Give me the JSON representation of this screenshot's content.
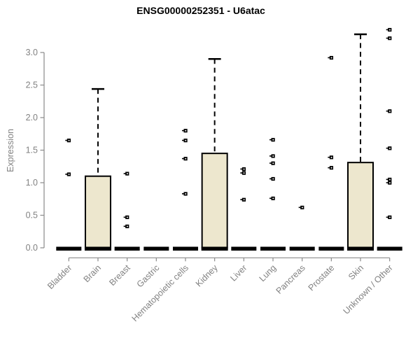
{
  "chart_data": {
    "type": "boxplot",
    "title": "ENSG00000252351 - U6atac",
    "ylabel": "Expression",
    "xlabel": "",
    "ylim": [
      0,
      3.45
    ],
    "ytick_labels": [
      "0.0",
      "0.5",
      "1.0",
      "1.5",
      "2.0",
      "2.5",
      "3.0"
    ],
    "categories": [
      "Bladder",
      "Brain",
      "Breast",
      "Gastric",
      "Hematopoietic cells",
      "Kidney",
      "Liver",
      "Lung",
      "Pancreas",
      "Prostate",
      "Skin",
      "Unknown / Other"
    ],
    "boxes": [
      {
        "category": "Bladder",
        "median": 0,
        "q1": 0,
        "q3": 0,
        "whisker_low": 0,
        "whisker_high": 0,
        "outliers": [
          1.65,
          1.13
        ]
      },
      {
        "category": "Brain",
        "median": 0,
        "q1": 0,
        "q3": 1.1,
        "whisker_low": 0,
        "whisker_high": 2.44,
        "outliers": []
      },
      {
        "category": "Breast",
        "median": 0,
        "q1": 0,
        "q3": 0,
        "whisker_low": 0,
        "whisker_high": 0,
        "outliers": [
          1.14,
          0.47,
          0.33
        ]
      },
      {
        "category": "Gastric",
        "median": 0,
        "q1": 0,
        "q3": 0,
        "whisker_low": 0,
        "whisker_high": 0,
        "outliers": []
      },
      {
        "category": "Hematopoietic cells",
        "median": 0,
        "q1": 0,
        "q3": 0,
        "whisker_low": 0,
        "whisker_high": 0,
        "outliers": [
          1.8,
          1.65,
          1.37,
          0.83
        ]
      },
      {
        "category": "Kidney",
        "median": 0,
        "q1": 0,
        "q3": 1.45,
        "whisker_low": 0,
        "whisker_high": 2.9,
        "outliers": []
      },
      {
        "category": "Liver",
        "median": 0,
        "q1": 0,
        "q3": 0,
        "whisker_low": 0,
        "whisker_high": 0,
        "outliers": [
          1.21,
          1.15,
          0.74
        ]
      },
      {
        "category": "Lung",
        "median": 0,
        "q1": 0,
        "q3": 0,
        "whisker_low": 0,
        "whisker_high": 0,
        "outliers": [
          1.66,
          1.41,
          1.3,
          1.06,
          0.76
        ]
      },
      {
        "category": "Pancreas",
        "median": 0,
        "q1": 0,
        "q3": 0,
        "whisker_low": 0,
        "whisker_high": 0,
        "outliers": [
          0.62
        ]
      },
      {
        "category": "Prostate",
        "median": 0,
        "q1": 0,
        "q3": 0,
        "whisker_low": 0,
        "whisker_high": 0,
        "outliers": [
          2.92,
          1.39,
          1.23
        ]
      },
      {
        "category": "Skin",
        "median": 0,
        "q1": 0,
        "q3": 1.31,
        "whisker_low": 0,
        "whisker_high": 3.28,
        "outliers": []
      },
      {
        "category": "Unknown / Other",
        "median": 0,
        "q1": 0,
        "q3": 0,
        "whisker_low": 0,
        "whisker_high": 0,
        "outliers": [
          3.35,
          3.22,
          2.1,
          1.53,
          1.05,
          1.0,
          0.47
        ]
      }
    ],
    "legend": null,
    "grid": false,
    "colors": {
      "box_fill": "#EDE7CE",
      "box_border": "#000000",
      "whisker": "#000000",
      "outlier": "#000000",
      "axis": "#8a8a8a",
      "tick_label": "#828282",
      "title": "#000000"
    }
  }
}
